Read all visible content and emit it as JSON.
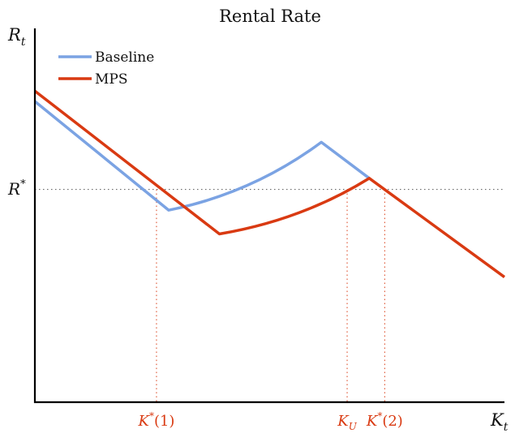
{
  "chart_data": {
    "type": "line",
    "title": "Rental Rate",
    "xlabel": "K",
    "xlabel_sub": "t",
    "ylabel": "R",
    "ylabel_sub": "t",
    "xlim": [
      0,
      100
    ],
    "ylim": [
      0,
      100
    ],
    "grid": false,
    "legend_position": "top-left",
    "series": [
      {
        "name": "Baseline",
        "color": "#7ba3e3",
        "x": [
          0,
          28.5,
          61.0,
          71.2
        ],
        "y": [
          81.0,
          51.7,
          70.0,
          60.3
        ]
      },
      {
        "name": "MPS",
        "color": "#d93a12",
        "x": [
          0,
          39.3,
          71.2,
          100.0
        ],
        "y": [
          83.8,
          45.3,
          60.3,
          33.7
        ]
      }
    ],
    "reference_line": {
      "label": "R*",
      "y": 57.3,
      "color": "#555555",
      "style": "dotted"
    },
    "annotations": [
      {
        "label": "K*(1)",
        "x": 25.9,
        "color": "#d93a12"
      },
      {
        "label": "K_U",
        "x": 66.5,
        "color": "#d93a12"
      },
      {
        "label": "K*(2)",
        "x": 74.5,
        "color": "#d93a12"
      }
    ]
  }
}
